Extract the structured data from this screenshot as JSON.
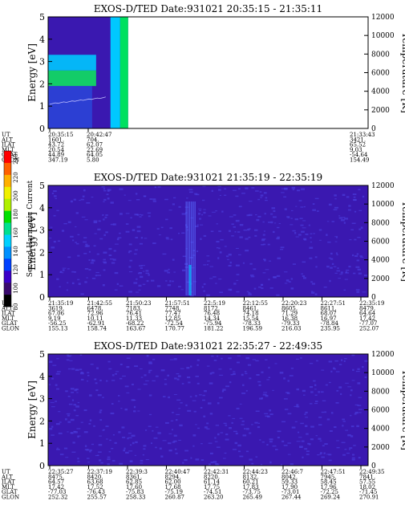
{
  "figure": {
    "colorbar": {
      "label": "Second Harmonic Current",
      "ticks": [
        "80",
        "100",
        "120",
        "140",
        "160",
        "180",
        "200",
        "220",
        "240"
      ],
      "colors": [
        "#000000",
        "#3a0a6e",
        "#3b00c8",
        "#0040ff",
        "#0090ff",
        "#00d0ff",
        "#00e090",
        "#00e000",
        "#b0f000",
        "#f0f000",
        "#ffb000",
        "#ff6000",
        "#ff0000"
      ]
    },
    "panel_bg": "#3a18b0",
    "noise_color": "#4a3cdc"
  },
  "chart_data": [
    {
      "type": "heatmap",
      "title": "EXOS-D/TED   Date:931021  20:35:15 - 21:35:11",
      "ylabel": "Energy [eV]",
      "y2label": "Temperature [K]",
      "ylim": [
        0,
        5
      ],
      "y2lim": [
        0,
        12000
      ],
      "yticks": [
        "0",
        "1",
        "2",
        "3",
        "4",
        "5"
      ],
      "y2ticks": [
        "0",
        "2000",
        "4000",
        "6000",
        "8000",
        "10000",
        "12000"
      ],
      "data_extent_fraction": 0.25,
      "bands": [
        {
          "energy_from": 1.9,
          "energy_to": 2.6,
          "level": "green"
        },
        {
          "energy_from": 2.6,
          "energy_to": 3.3,
          "level": "cyan"
        },
        {
          "energy_from": 0.0,
          "energy_to": 1.9,
          "level": "blue"
        }
      ],
      "ephemeris": {
        "labels": [
          "UT",
          "ALT",
          "ILAT",
          "MLT",
          "GLAT",
          "GLON"
        ],
        "columns": [
          {
            "values": [
              "20:35:15",
              "1601.",
              "43.72",
              "20.54",
              "44.89",
              "347.19"
            ]
          },
          {
            "values": [
              "20:42:47",
              "704.",
              "62.07",
              "22.69",
              "64.05",
              "5.80"
            ]
          },
          {
            "values": [
              "21:33:43",
              "3421.",
              "65.52",
              "9.03",
              "-54.64",
              "154.49"
            ]
          }
        ]
      }
    },
    {
      "type": "heatmap",
      "title": "EXOS-D/TED   Date:931021  21:35:19 - 22:35:19",
      "ylabel": "Energy [eV]",
      "y2label": "Temperature [K]",
      "ylim": [
        0,
        5
      ],
      "y2lim": [
        0,
        12000
      ],
      "yticks": [
        "0",
        "1",
        "2",
        "3",
        "4",
        "5"
      ],
      "y2ticks": [
        "0",
        "2000",
        "4000",
        "6000",
        "8000",
        "10000",
        "12000"
      ],
      "ephemeris": {
        "labels": [
          "UT",
          "ALT",
          "ILAT",
          "MLT",
          "GLAT",
          "GLON"
        ],
        "columns": [
          {
            "values": [
              "21:35:19",
              "3619.",
              "67.06",
              "9.19",
              "-56.25",
              "155.13"
            ]
          },
          {
            "values": [
              "21:42:55",
              "6478.",
              "72.96",
              "10.11",
              "-62.91",
              "158.74"
            ]
          },
          {
            "values": [
              "21:50:23",
              "7183.",
              "76.41",
              "11.33",
              "-68.22",
              "163.67"
            ]
          },
          {
            "values": [
              "21:57:51",
              "7748.",
              "77.47",
              "12.85",
              "-72.54",
              "170.77"
            ]
          },
          {
            "values": [
              "22:5:19",
              "8172.",
              "76.48",
              "14.34",
              "-75.94",
              "181.22"
            ]
          },
          {
            "values": [
              "22:12:55",
              "8461.",
              "74.18",
              "15.54",
              "-78.33",
              "196.59"
            ]
          },
          {
            "values": [
              "22:20:23",
              "8605.",
              "71.29",
              "16.38",
              "-79.33",
              "216.03"
            ]
          },
          {
            "values": [
              "22:27:51",
              "8611.",
              "68.07",
              "16.97",
              "-78.84",
              "235.95"
            ]
          },
          {
            "values": [
              "22:35:19",
              "8479.",
              "64.64",
              "17.42",
              "-77.07",
              "252.07"
            ]
          }
        ]
      }
    },
    {
      "type": "heatmap",
      "title": "EXOS-D/TED   Date:931021  22:35:27 - 22:49:35",
      "ylabel": "Energy [eV]",
      "y2label": "Temperature [K]",
      "ylim": [
        0,
        5
      ],
      "y2lim": [
        0,
        12000
      ],
      "yticks": [
        "0",
        "1",
        "2",
        "3",
        "4",
        "5"
      ],
      "y2ticks": [
        "0",
        "2000",
        "4000",
        "6000",
        "8000",
        "10000",
        "12000"
      ],
      "ephemeris": {
        "labels": [
          "UT",
          "ALT",
          "ILAT",
          "MLT",
          "GLAT",
          "GLON"
        ],
        "columns": [
          {
            "values": [
              "22:35:27",
              "8475.",
              "64.57",
              "17.42",
              "-77.03",
              "252.32"
            ]
          },
          {
            "values": [
              "22:37:19",
              "8420.",
              "63.68",
              "17.52",
              "-76.43",
              "255.57"
            ]
          },
          {
            "values": [
              "22:39:3",
              "8361.",
              "62.85",
              "17.60",
              "-75.83",
              "258.33"
            ]
          },
          {
            "values": [
              "22:40:47",
              "8294.",
              "62.00",
              "17.68",
              "-75.19",
              "260.87"
            ]
          },
          {
            "values": [
              "22:42:31",
              "8220.",
              "61.14",
              "17.75",
              "-74.51",
              "263.20"
            ]
          },
          {
            "values": [
              "22:44:23",
              "8132.",
              "60.21",
              "17.83",
              "-73.75",
              "265.49"
            ]
          },
          {
            "values": [
              "22:46:7",
              "8042.",
              "59.33",
              "17.90",
              "-73.01",
              "267.44"
            ]
          },
          {
            "values": [
              "22:47:51",
              "7945.",
              "58.45",
              "17.96",
              "-72.25",
              "269.24"
            ]
          },
          {
            "values": [
              "22:49:35",
              "7841.",
              "57.55",
              "18.02",
              "-71.45",
              "270.91"
            ]
          }
        ]
      }
    }
  ]
}
